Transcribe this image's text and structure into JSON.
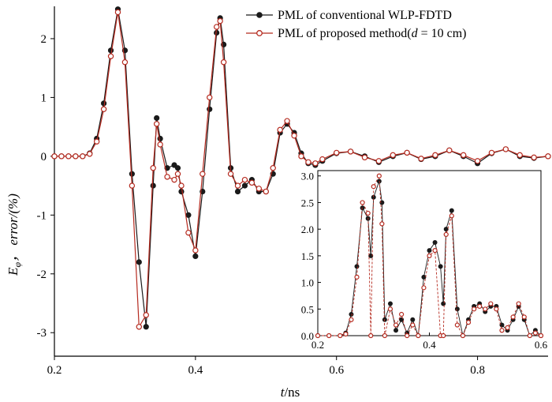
{
  "colors": {
    "conventional": "#1a1a1a",
    "proposed": "#b52a1f",
    "axis": "#000000"
  },
  "legend": {
    "conventional_label": "PML of conventional WLP-FDTD",
    "proposed_label_prefix": "PML of proposed method(",
    "proposed_label_var": "d",
    "proposed_label_suffix": " = 10 cm)"
  },
  "axes": {
    "x_label_var": "t",
    "x_label_unit": "/ns",
    "y_label_var": "E",
    "y_label_sub": "φ",
    "y_label_rest": "， error/(%)"
  },
  "chart_data": [
    {
      "type": "line",
      "xlim": [
        0.2,
        0.9
      ],
      "ylim": [
        -3.4,
        2.55
      ],
      "x_ticks": [
        0.2,
        0.4,
        0.6,
        0.8
      ],
      "x_tick_labels": [
        "0.2",
        "0.4",
        "0.6",
        "0.8"
      ],
      "y_ticks": [
        -3,
        -2,
        -1,
        0,
        1,
        2
      ],
      "y_tick_labels": [
        "-3",
        "-2",
        "-1",
        "0",
        "1",
        "2"
      ],
      "grid": false,
      "legend_position": "top-right",
      "series": [
        {
          "name": "PML of conventional WLP-FDTD",
          "marker": "filled-circle",
          "x": [
            0.2,
            0.21,
            0.22,
            0.23,
            0.24,
            0.25,
            0.26,
            0.27,
            0.28,
            0.29,
            0.3,
            0.31,
            0.32,
            0.33,
            0.34,
            0.345,
            0.35,
            0.36,
            0.37,
            0.375,
            0.38,
            0.39,
            0.4,
            0.41,
            0.42,
            0.43,
            0.435,
            0.44,
            0.45,
            0.46,
            0.47,
            0.48,
            0.49,
            0.5,
            0.51,
            0.52,
            0.53,
            0.54,
            0.55,
            0.56,
            0.57,
            0.58,
            0.6,
            0.62,
            0.64,
            0.66,
            0.68,
            0.7,
            0.72,
            0.74,
            0.76,
            0.78,
            0.8,
            0.82,
            0.84,
            0.86,
            0.88,
            0.9
          ],
          "y": [
            0,
            0,
            0,
            0,
            0,
            0.05,
            0.3,
            0.9,
            1.8,
            2.5,
            1.8,
            -0.3,
            -1.8,
            -2.9,
            -0.5,
            0.65,
            0.3,
            -0.2,
            -0.15,
            -0.2,
            -0.6,
            -1.0,
            -1.7,
            -0.6,
            0.8,
            2.1,
            2.35,
            1.9,
            -0.2,
            -0.6,
            -0.5,
            -0.4,
            -0.6,
            -0.6,
            -0.3,
            0.4,
            0.55,
            0.4,
            0.05,
            -0.12,
            -0.15,
            -0.08,
            0.05,
            0.08,
            0.0,
            -0.1,
            0.0,
            0.06,
            -0.05,
            0.0,
            0.1,
            0.0,
            -0.12,
            0.05,
            0.12,
            0.0,
            -0.03,
            0.0
          ]
        },
        {
          "name": "PML of proposed method(d = 10 cm)",
          "marker": "open-circle",
          "x": [
            0.2,
            0.21,
            0.22,
            0.23,
            0.24,
            0.25,
            0.26,
            0.27,
            0.28,
            0.29,
            0.3,
            0.31,
            0.32,
            0.33,
            0.34,
            0.345,
            0.35,
            0.36,
            0.37,
            0.375,
            0.38,
            0.39,
            0.4,
            0.41,
            0.42,
            0.43,
            0.435,
            0.44,
            0.45,
            0.46,
            0.47,
            0.48,
            0.49,
            0.5,
            0.51,
            0.52,
            0.53,
            0.54,
            0.55,
            0.56,
            0.57,
            0.58,
            0.6,
            0.62,
            0.64,
            0.66,
            0.68,
            0.7,
            0.72,
            0.74,
            0.76,
            0.78,
            0.8,
            0.82,
            0.84,
            0.86,
            0.88,
            0.9
          ],
          "y": [
            0,
            0,
            0,
            0,
            0,
            0.04,
            0.25,
            0.8,
            1.7,
            2.45,
            1.6,
            -0.5,
            -2.9,
            -2.7,
            -0.2,
            0.55,
            0.2,
            -0.35,
            -0.4,
            -0.3,
            -0.5,
            -1.3,
            -1.6,
            -0.3,
            1.0,
            2.2,
            2.3,
            1.6,
            -0.3,
            -0.5,
            -0.4,
            -0.45,
            -0.55,
            -0.6,
            -0.2,
            0.45,
            0.6,
            0.35,
            0.0,
            -0.1,
            -0.12,
            -0.05,
            0.06,
            0.08,
            -0.02,
            -0.08,
            0.02,
            0.06,
            -0.04,
            0.02,
            0.1,
            0.02,
            -0.08,
            0.06,
            0.12,
            0.02,
            -0.02,
            0.0
          ]
        }
      ]
    },
    {
      "type": "line",
      "inset": true,
      "xlim": [
        0.2,
        0.6
      ],
      "ylim": [
        0,
        3.1
      ],
      "x_ticks": [
        0.2,
        0.4,
        0.6
      ],
      "x_tick_labels": [
        "0.2",
        "0.4",
        "0.6"
      ],
      "y_ticks": [
        0,
        0.5,
        1.0,
        1.5,
        2.0,
        2.5,
        3.0
      ],
      "y_tick_labels": [
        "0.0",
        "0.5",
        "1.0",
        "1.5",
        "2.0",
        "2.5",
        "3.0"
      ],
      "grid": false,
      "series": [
        {
          "name": "PML of conventional WLP-FDTD",
          "marker": "filled-circle",
          "x": [
            0.2,
            0.22,
            0.24,
            0.25,
            0.26,
            0.27,
            0.28,
            0.29,
            0.295,
            0.3,
            0.31,
            0.315,
            0.32,
            0.33,
            0.34,
            0.35,
            0.36,
            0.37,
            0.38,
            0.39,
            0.4,
            0.41,
            0.42,
            0.425,
            0.43,
            0.44,
            0.45,
            0.46,
            0.47,
            0.48,
            0.49,
            0.5,
            0.51,
            0.52,
            0.53,
            0.54,
            0.55,
            0.56,
            0.57,
            0.58,
            0.59,
            0.6
          ],
          "y": [
            0,
            0,
            0,
            0.05,
            0.4,
            1.3,
            2.4,
            2.2,
            1.5,
            2.6,
            2.9,
            2.5,
            0.3,
            0.6,
            0.1,
            0.3,
            0.05,
            0.3,
            0.0,
            1.1,
            1.6,
            1.75,
            1.3,
            0.6,
            2.0,
            2.35,
            0.5,
            0.0,
            0.3,
            0.55,
            0.6,
            0.45,
            0.55,
            0.55,
            0.2,
            0.1,
            0.3,
            0.55,
            0.3,
            0.0,
            0.1,
            0.0
          ]
        },
        {
          "name": "PML of proposed method(d = 10 cm)",
          "marker": "open-circle",
          "x": [
            0.2,
            0.22,
            0.24,
            0.25,
            0.26,
            0.27,
            0.28,
            0.29,
            0.295,
            0.3,
            0.31,
            0.315,
            0.32,
            0.33,
            0.34,
            0.35,
            0.36,
            0.37,
            0.38,
            0.39,
            0.4,
            0.41,
            0.42,
            0.425,
            0.43,
            0.44,
            0.45,
            0.46,
            0.47,
            0.48,
            0.49,
            0.5,
            0.51,
            0.52,
            0.53,
            0.54,
            0.55,
            0.56,
            0.57,
            0.58,
            0.59,
            0.6
          ],
          "y": [
            0,
            0,
            0,
            0.03,
            0.3,
            1.1,
            2.5,
            2.3,
            0.0,
            2.8,
            3.0,
            2.1,
            0.0,
            0.5,
            0.2,
            0.4,
            0.0,
            0.2,
            0.0,
            0.9,
            1.5,
            1.6,
            0.0,
            0.0,
            1.9,
            2.25,
            0.2,
            0.0,
            0.25,
            0.5,
            0.55,
            0.5,
            0.6,
            0.5,
            0.1,
            0.15,
            0.35,
            0.6,
            0.35,
            0.0,
            0.05,
            0.0
          ]
        }
      ]
    }
  ]
}
